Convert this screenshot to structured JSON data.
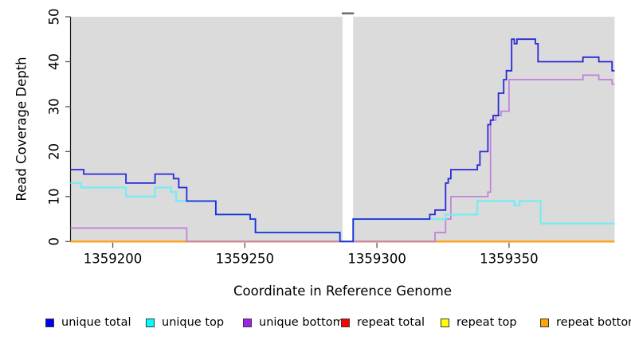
{
  "figure": {
    "x_axis_label": "Coordinate in Reference Genome",
    "y_axis_label": "Read Coverage Depth"
  },
  "legend": {
    "items": [
      {
        "label": "unique total",
        "color": "#0000EE"
      },
      {
        "label": "unique top",
        "color": "#00FFFF"
      },
      {
        "label": "unique bottom",
        "color": "#A020F0"
      },
      {
        "label": "repeat total",
        "color": "#FF0000"
      },
      {
        "label": "repeat top",
        "color": "#FFFF00"
      },
      {
        "label": "repeat bottom",
        "color": "#FFA500"
      }
    ]
  },
  "chart_data": {
    "type": "line",
    "title": "",
    "xlabel": "Coordinate in Reference Genome",
    "ylabel": "Read Coverage Depth",
    "xlim": [
      1359184,
      1359390
    ],
    "ylim": [
      0,
      50
    ],
    "grid": false,
    "legend_position": "bottom",
    "plot_bg": "#DBDBDB",
    "x_ticks": [
      1359200,
      1359250,
      1359300,
      1359350
    ],
    "x_tick_labels": [
      "1359200",
      "1359250",
      "1359300",
      "1359350"
    ],
    "y_ticks": [
      0,
      10,
      20,
      30,
      40,
      50
    ],
    "y_tick_labels": [
      "0",
      "10",
      "20",
      "30",
      "40",
      "50"
    ],
    "gap_region": {
      "x_start": 1359287,
      "x_end": 1359291
    },
    "series": [
      {
        "name": "repeat total",
        "color": "#E00000",
        "width": 2.0,
        "points": [
          [
            1359184,
            0
          ],
          [
            1359390,
            0
          ]
        ]
      },
      {
        "name": "repeat top",
        "color": "#FFEE00",
        "width": 2.0,
        "points": [
          [
            1359184,
            0
          ],
          [
            1359390,
            0
          ]
        ]
      },
      {
        "name": "repeat bottom",
        "color": "#FFA41E",
        "width": 2.2,
        "points": [
          [
            1359184,
            0
          ],
          [
            1359390,
            0
          ]
        ]
      },
      {
        "name": "unique bottom",
        "color": "#C07FDA",
        "width": 1.7,
        "points": [
          [
            1359184,
            3
          ],
          [
            1359228,
            0
          ],
          [
            1359322,
            2
          ],
          [
            1359326,
            5
          ],
          [
            1359328,
            10
          ],
          [
            1359342,
            11
          ],
          [
            1359343,
            27
          ],
          [
            1359345,
            28
          ],
          [
            1359347,
            29
          ],
          [
            1359350,
            36
          ],
          [
            1359378,
            37
          ],
          [
            1359384,
            36
          ],
          [
            1359389,
            35
          ],
          [
            1359390,
            35
          ]
        ]
      },
      {
        "name": "unique top",
        "color": "#7DEBEF",
        "width": 2.4,
        "points": [
          [
            1359184,
            13
          ],
          [
            1359188,
            12
          ],
          [
            1359205,
            10
          ],
          [
            1359216,
            12
          ],
          [
            1359222,
            11
          ],
          [
            1359224,
            9
          ],
          [
            1359239,
            6
          ],
          [
            1359252,
            5
          ],
          [
            1359254,
            2
          ],
          [
            1359286,
            0
          ],
          [
            1359291,
            5
          ],
          [
            1359326,
            6
          ],
          [
            1359338,
            9
          ],
          [
            1359352,
            8
          ],
          [
            1359354,
            9
          ],
          [
            1359362,
            4
          ],
          [
            1359390,
            4
          ]
        ]
      },
      {
        "name": "unique total",
        "color": "#2828D7",
        "width": 1.8,
        "points": [
          [
            1359184,
            16
          ],
          [
            1359189,
            15
          ],
          [
            1359205,
            13
          ],
          [
            1359216,
            15
          ],
          [
            1359223,
            14
          ],
          [
            1359225,
            12
          ],
          [
            1359228,
            9
          ],
          [
            1359239,
            6
          ],
          [
            1359252,
            5
          ],
          [
            1359254,
            2
          ],
          [
            1359286,
            0
          ],
          [
            1359291,
            5
          ],
          [
            1359320,
            6
          ],
          [
            1359322,
            7
          ],
          [
            1359326,
            13
          ],
          [
            1359327,
            14
          ],
          [
            1359328,
            16
          ],
          [
            1359338,
            17
          ],
          [
            1359339,
            20
          ],
          [
            1359342,
            26
          ],
          [
            1359343,
            27
          ],
          [
            1359344,
            28
          ],
          [
            1359346,
            33
          ],
          [
            1359348,
            36
          ],
          [
            1359349,
            38
          ],
          [
            1359351,
            45
          ],
          [
            1359352,
            44
          ],
          [
            1359353,
            45
          ],
          [
            1359360,
            44
          ],
          [
            1359361,
            40
          ],
          [
            1359378,
            41
          ],
          [
            1359384,
            40
          ],
          [
            1359389,
            38
          ],
          [
            1359390,
            38
          ]
        ]
      }
    ]
  }
}
